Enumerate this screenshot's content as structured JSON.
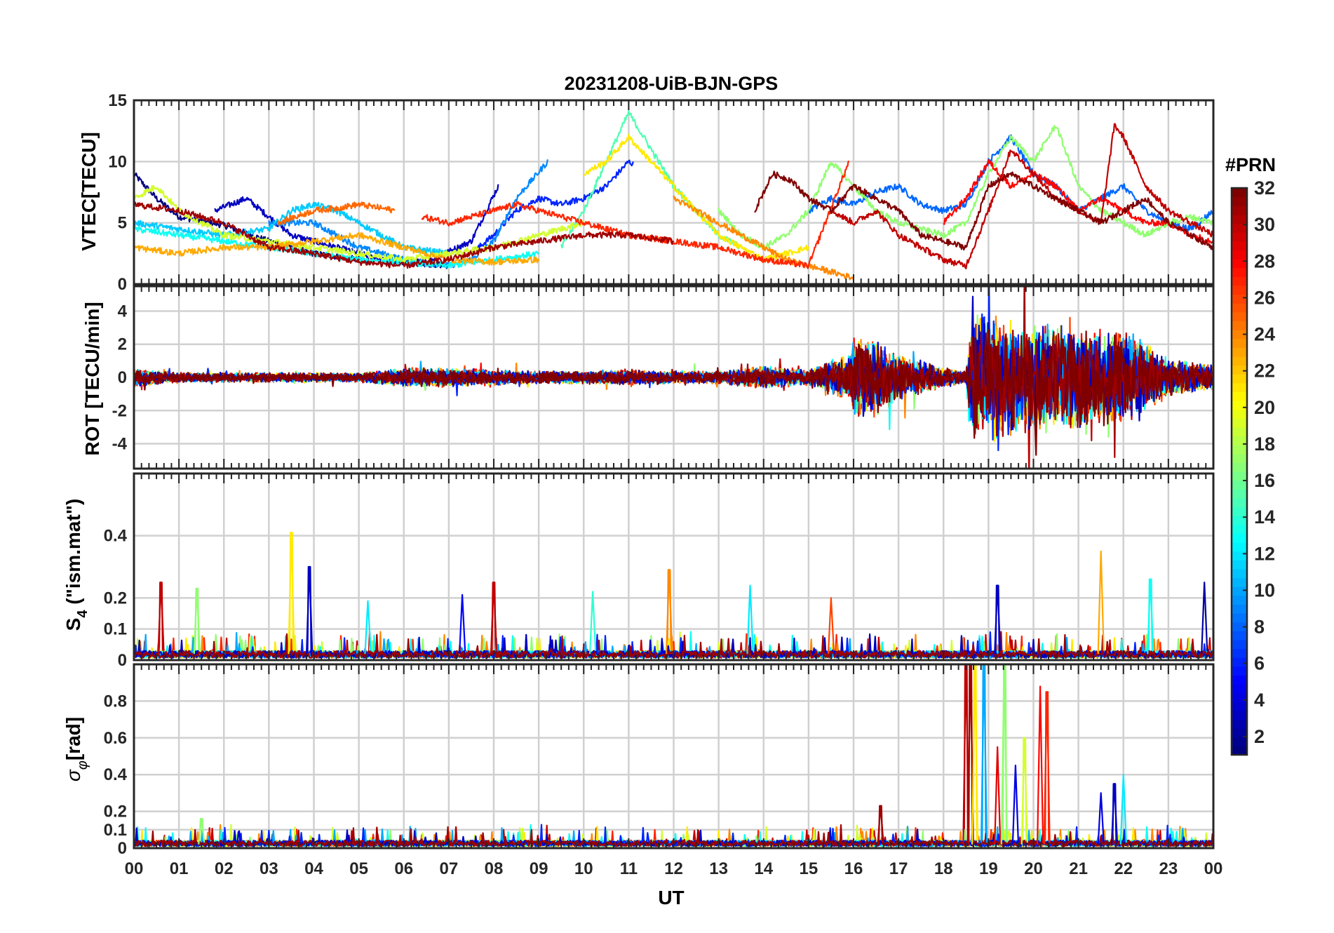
{
  "figure": {
    "title": "20231208-UiB-BJN-GPS",
    "x_label": "UT",
    "x_ticks": [
      "00",
      "01",
      "02",
      "03",
      "04",
      "05",
      "06",
      "07",
      "08",
      "09",
      "10",
      "11",
      "12",
      "13",
      "14",
      "15",
      "16",
      "17",
      "18",
      "19",
      "20",
      "21",
      "22",
      "23",
      "00"
    ],
    "colorbar": {
      "label": "#PRN",
      "range": [
        1,
        32
      ],
      "ticks": [
        "2",
        "4",
        "6",
        "8",
        "10",
        "12",
        "14",
        "16",
        "18",
        "20",
        "22",
        "24",
        "26",
        "28",
        "30",
        "32"
      ],
      "colormap": "jet"
    }
  },
  "chart_data": [
    {
      "id": "vtec",
      "type": "line",
      "ylabel": "VTEC[TECU]",
      "xlim": [
        0,
        24
      ],
      "ylim": [
        0,
        15
      ],
      "yticks": [
        0,
        5,
        10,
        15
      ],
      "ytick_labels": [
        "0",
        "5",
        "10",
        "15"
      ],
      "series_note": "one line per GPS PRN (1-32), colored by PRN; curves approximated from image",
      "series": [
        {
          "prn": 1,
          "x": [
            0,
            0.5,
            1,
            2,
            3,
            4,
            5,
            6,
            7
          ],
          "y": [
            9,
            7,
            5.5,
            4.8,
            3.5,
            2.5,
            2,
            1.8,
            1.5
          ]
        },
        {
          "prn": 3,
          "x": [
            1.8,
            2.5,
            3,
            3.5,
            4.5,
            5.5,
            6.5,
            7.5,
            8.1
          ],
          "y": [
            6,
            7,
            5.5,
            4,
            3,
            2,
            1.8,
            3.5,
            8
          ]
        },
        {
          "prn": 6,
          "x": [
            7.5,
            8,
            8.5,
            9,
            9.5,
            10,
            10.5,
            11,
            11.1
          ],
          "y": [
            2.5,
            4,
            6,
            7,
            6.5,
            7,
            8,
            10,
            9.8
          ]
        },
        {
          "prn": 8,
          "x": [
            15,
            15.5,
            16,
            16.5,
            17,
            17.5,
            18,
            18.5,
            19,
            19.5,
            20,
            20.5,
            21,
            21.5,
            22,
            22.5,
            23,
            23.5,
            24
          ],
          "y": [
            6,
            7,
            6.5,
            7.5,
            8,
            6.5,
            6,
            6.5,
            10,
            12,
            9,
            8,
            6,
            7,
            8,
            6,
            5,
            4.5,
            6
          ]
        },
        {
          "prn": 9,
          "x": [
            3,
            4,
            5,
            6,
            7,
            7.5,
            8,
            8.5,
            9.2
          ],
          "y": [
            5,
            5,
            3,
            2,
            1.5,
            2,
            3.5,
            7,
            10
          ]
        },
        {
          "prn": 11,
          "x": [
            0,
            1,
            2,
            3,
            3.5,
            4,
            4.5,
            5,
            5.5,
            6,
            7
          ],
          "y": [
            5,
            4.5,
            4,
            4.5,
            6,
            6.5,
            6,
            5,
            4,
            3,
            2.5
          ]
        },
        {
          "prn": 13,
          "x": [
            0,
            1,
            2,
            3,
            4,
            5,
            6,
            7,
            8,
            9
          ],
          "y": [
            4.5,
            4,
            3.5,
            3,
            2.5,
            2,
            1.8,
            1.5,
            2,
            2.5
          ]
        },
        {
          "prn": 15,
          "x": [
            9.5,
            10,
            10.5,
            11,
            11.5,
            12,
            12.5,
            13,
            13.5
          ],
          "y": [
            3,
            6,
            10,
            14,
            11,
            8,
            6,
            4,
            3
          ]
        },
        {
          "prn": 17,
          "x": [
            13,
            13.5,
            14,
            14.5,
            15,
            15.5,
            16,
            16.5,
            17,
            17.5,
            18,
            18.5,
            19,
            19.5,
            20,
            20.5,
            21,
            21.5,
            22,
            22.5,
            23,
            23.5,
            24
          ],
          "y": [
            6,
            4,
            3,
            4,
            6,
            10,
            8,
            6,
            5,
            4.5,
            4,
            5,
            9,
            12,
            10,
            13,
            8,
            6,
            5,
            4,
            5,
            5.5,
            5
          ]
        },
        {
          "prn": 19,
          "x": [
            0,
            0.5,
            1,
            2,
            3,
            4,
            5,
            6,
            7,
            8,
            9,
            10
          ],
          "y": [
            7,
            8,
            6,
            4,
            3.5,
            3,
            2.5,
            2,
            2.5,
            3,
            4,
            5
          ]
        },
        {
          "prn": 21,
          "x": [
            10,
            10.5,
            11,
            11.5,
            12,
            12.5,
            13,
            13.5,
            14,
            14.5,
            15
          ],
          "y": [
            9,
            10,
            12,
            10,
            8,
            6,
            4,
            3,
            2,
            2.5,
            3
          ]
        },
        {
          "prn": 23,
          "x": [
            0,
            1,
            2,
            3,
            4,
            5,
            6,
            7,
            8,
            9
          ],
          "y": [
            3,
            2.5,
            3,
            3,
            3.5,
            4,
            3,
            2,
            1.8,
            2
          ]
        },
        {
          "prn": 24,
          "x": [
            12,
            12.5,
            13,
            13.5,
            14,
            14.5,
            15,
            15.5,
            16
          ],
          "y": [
            7,
            6,
            5,
            4,
            3,
            2,
            1.5,
            1,
            0.5
          ]
        },
        {
          "prn": 25,
          "x": [
            3.2,
            4,
            4.5,
            5,
            5.5,
            5.8
          ],
          "y": [
            5,
            6,
            6.2,
            6.5,
            6.2,
            6
          ]
        },
        {
          "prn": 27,
          "x": [
            6.4,
            7,
            7.5,
            8,
            8.5,
            9,
            10,
            11,
            12,
            13,
            14,
            15,
            15.9
          ],
          "y": [
            5.5,
            5,
            5.5,
            6,
            6.5,
            6,
            5,
            4,
            3.5,
            3,
            2,
            1.5,
            10
          ]
        },
        {
          "prn": 28,
          "x": [
            18,
            18.5,
            19,
            19.5,
            20,
            20.5,
            21,
            21.5,
            22,
            22.5,
            23,
            23.5,
            24
          ],
          "y": [
            5,
            7,
            10,
            8,
            9,
            8,
            6,
            7,
            6,
            5,
            5,
            4,
            3.5
          ]
        },
        {
          "prn": 30,
          "x": [
            15.5,
            16,
            16.5,
            17,
            17.5,
            18,
            18.5,
            19,
            19.5,
            20,
            20.5,
            21,
            21.5,
            21.8,
            22,
            22.5,
            23,
            23.5,
            24
          ],
          "y": [
            6,
            5,
            6,
            4,
            3,
            2,
            1.5,
            6,
            11,
            9,
            7,
            6,
            5,
            13,
            12,
            8,
            6,
            5,
            4
          ]
        },
        {
          "prn": 31,
          "x": [
            0,
            1,
            2,
            3,
            4,
            5,
            6,
            7,
            8,
            9,
            10,
            11,
            12
          ],
          "y": [
            6.5,
            6,
            5,
            3,
            2.5,
            1.8,
            1.5,
            2,
            3,
            3.5,
            4,
            4,
            3.5
          ]
        },
        {
          "prn": 32,
          "x": [
            13.8,
            14.2,
            14.6,
            15,
            15.5,
            16,
            16.5,
            17,
            17.5,
            18,
            18.5,
            19,
            19.5,
            20,
            20.5,
            21,
            21.5,
            22,
            22.5,
            23,
            23.5,
            24
          ],
          "y": [
            6,
            9,
            8.5,
            7,
            6,
            8,
            7,
            6,
            4,
            3.5,
            3,
            8,
            9,
            8,
            7,
            6,
            5,
            6,
            7,
            5,
            4,
            3
          ]
        }
      ]
    },
    {
      "id": "rot",
      "type": "line",
      "ylabel": "ROT [TECU/min]",
      "xlim": [
        0,
        24
      ],
      "ylim": [
        -5.5,
        5.5
      ],
      "yticks": [
        -4,
        -2,
        0,
        2,
        4
      ],
      "ytick_labels": [
        "-4",
        "-2",
        "0",
        "2",
        "4"
      ],
      "activity_note": "noise envelope amplitude vs UT (approximate)",
      "activity": {
        "x": [
          0,
          1,
          2,
          3,
          4,
          5,
          6,
          7,
          8,
          9,
          10,
          11,
          12,
          13,
          14,
          15,
          15.9,
          16,
          16.5,
          17,
          18,
          18.5,
          18.6,
          19,
          20,
          21,
          22,
          23,
          24
        ],
        "amp": [
          0.6,
          0.3,
          0.3,
          0.3,
          0.3,
          0.3,
          0.6,
          0.6,
          0.5,
          0.4,
          0.4,
          0.5,
          0.4,
          0.4,
          0.7,
          0.5,
          1.5,
          2.5,
          2.5,
          1.5,
          0.6,
          0.4,
          4,
          4,
          3.5,
          3.2,
          3,
          1.2,
          0.8
        ]
      }
    },
    {
      "id": "s4",
      "type": "line",
      "ylabel": "S4 (\"ism.mat\")",
      "ylabel_main": "S",
      "ylabel_sub": "4",
      "ylabel_rest": " (\"ism.mat\")",
      "xlim": [
        0,
        24
      ],
      "ylim": [
        0,
        0.6
      ],
      "yticks": [
        0,
        0.1,
        0.2,
        0.4
      ],
      "ytick_labels": [
        "0",
        "0.1",
        "0.2",
        "0.4"
      ],
      "spikes": [
        {
          "t": 0.6,
          "v": 0.25,
          "prn": 30
        },
        {
          "t": 1.4,
          "v": 0.23,
          "prn": 17
        },
        {
          "t": 3.5,
          "v": 0.41,
          "prn": 21
        },
        {
          "t": 3.9,
          "v": 0.3,
          "prn": 3
        },
        {
          "t": 5.2,
          "v": 0.19,
          "prn": 12
        },
        {
          "t": 7.3,
          "v": 0.21,
          "prn": 5
        },
        {
          "t": 8.0,
          "v": 0.25,
          "prn": 30
        },
        {
          "t": 10.2,
          "v": 0.22,
          "prn": 14
        },
        {
          "t": 11.9,
          "v": 0.29,
          "prn": 24
        },
        {
          "t": 13.7,
          "v": 0.24,
          "prn": 12
        },
        {
          "t": 15.5,
          "v": 0.2,
          "prn": 26
        },
        {
          "t": 19.2,
          "v": 0.24,
          "prn": 3
        },
        {
          "t": 21.5,
          "v": 0.35,
          "prn": 23
        },
        {
          "t": 22.6,
          "v": 0.26,
          "prn": 13
        },
        {
          "t": 23.8,
          "v": 0.25,
          "prn": 2
        }
      ]
    },
    {
      "id": "sigma_phi",
      "type": "line",
      "ylabel": "σφ[rad]",
      "ylabel_main": "σ",
      "ylabel_sub": "φ",
      "ylabel_rest": "[rad]",
      "xlim": [
        0,
        24
      ],
      "ylim": [
        0,
        1
      ],
      "yticks": [
        0,
        0.1,
        0.2,
        0.4,
        0.6,
        0.8
      ],
      "ytick_labels": [
        "0",
        "0.1",
        "0.2",
        "0.4",
        "0.6",
        "0.8"
      ],
      "spikes": [
        {
          "t": 18.5,
          "v": 1.0,
          "prn": 30
        },
        {
          "t": 18.6,
          "v": 1.0,
          "prn": 31
        },
        {
          "t": 18.7,
          "v": 1.0,
          "prn": 21
        },
        {
          "t": 18.9,
          "v": 1.0,
          "prn": 10
        },
        {
          "t": 19.2,
          "v": 0.55,
          "prn": 29
        },
        {
          "t": 19.35,
          "v": 1.0,
          "prn": 17
        },
        {
          "t": 19.6,
          "v": 0.45,
          "prn": 4
        },
        {
          "t": 19.8,
          "v": 0.6,
          "prn": 19
        },
        {
          "t": 20.15,
          "v": 0.88,
          "prn": 28
        },
        {
          "t": 20.3,
          "v": 0.85,
          "prn": 27
        },
        {
          "t": 21.5,
          "v": 0.3,
          "prn": 4
        },
        {
          "t": 21.8,
          "v": 0.35,
          "prn": 3
        },
        {
          "t": 22.0,
          "v": 0.4,
          "prn": 12
        },
        {
          "t": 16.6,
          "v": 0.23,
          "prn": 31
        },
        {
          "t": 1.5,
          "v": 0.16,
          "prn": 17
        }
      ]
    }
  ]
}
